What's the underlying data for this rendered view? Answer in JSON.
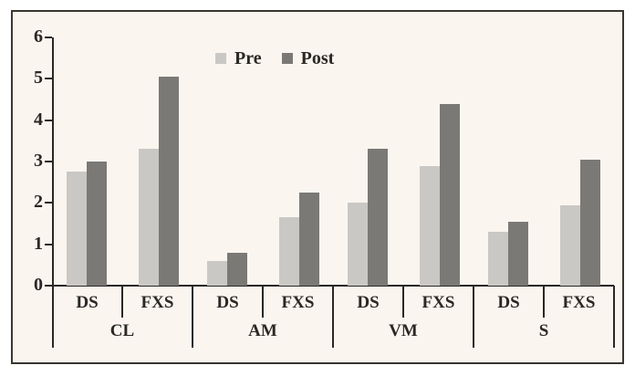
{
  "chart": {
    "background_color": "#faf5ef",
    "frame_border_color": "#3a362f",
    "axis_color": "#2b2722",
    "text_color": "#2b2722"
  },
  "chart_data": {
    "type": "bar",
    "title": "",
    "xlabel": "",
    "ylabel": "",
    "groups": [
      "CL",
      "AM",
      "VM",
      "S"
    ],
    "subgroups_per_group": [
      "DS",
      "FXS"
    ],
    "categories": [
      "CL-DS",
      "CL-FXS",
      "AM-DS",
      "AM-FXS",
      "VM-DS",
      "VM-FXS",
      "S-DS",
      "S-FXS"
    ],
    "series": [
      {
        "name": "Pre",
        "color": "#c9c8c5",
        "values": [
          2.75,
          3.3,
          0.6,
          1.65,
          2.0,
          2.9,
          1.3,
          1.95
        ]
      },
      {
        "name": "Post",
        "color": "#7b7976",
        "values": [
          3.0,
          5.05,
          0.8,
          2.25,
          3.3,
          4.4,
          1.55,
          3.05
        ]
      }
    ],
    "ylim": [
      0,
      6
    ],
    "yticks": [
      0,
      1,
      2,
      3,
      4,
      5,
      6
    ],
    "legend_position": "top-center",
    "grid": false
  }
}
